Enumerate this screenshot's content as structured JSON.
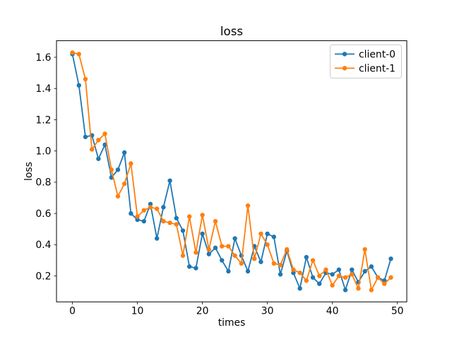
{
  "figure": {
    "title": "loss",
    "background": "#ffffff"
  },
  "chart_data": {
    "type": "line",
    "title": "loss",
    "xlabel": "times",
    "ylabel": "loss",
    "grid": false,
    "marker": "circle",
    "legend": {
      "position": "upper right",
      "entries": [
        "client-0",
        "client-1"
      ]
    },
    "xlim": [
      -2.45,
      51.45
    ],
    "ylim": [
      0.034,
      1.706
    ],
    "xticks": [
      0,
      10,
      20,
      30,
      40,
      50
    ],
    "yticks": [
      "0.2",
      "0.4",
      "0.6",
      "0.8",
      "1.0",
      "1.2",
      "1.4",
      "1.6"
    ],
    "x": [
      0,
      1,
      2,
      3,
      4,
      5,
      6,
      7,
      8,
      9,
      10,
      11,
      12,
      13,
      14,
      15,
      16,
      17,
      18,
      19,
      20,
      21,
      22,
      23,
      24,
      25,
      26,
      27,
      28,
      29,
      30,
      31,
      32,
      33,
      34,
      35,
      36,
      37,
      38,
      39,
      40,
      41,
      42,
      43,
      44,
      45,
      46,
      47,
      48,
      49
    ],
    "series": [
      {
        "name": "client-0",
        "color": "#1f77b4",
        "values": [
          1.62,
          1.42,
          1.09,
          1.1,
          0.95,
          1.04,
          0.83,
          0.88,
          0.99,
          0.6,
          0.56,
          0.55,
          0.66,
          0.44,
          0.64,
          0.81,
          0.57,
          0.49,
          0.26,
          0.25,
          0.47,
          0.34,
          0.38,
          0.3,
          0.23,
          0.44,
          0.33,
          0.23,
          0.39,
          0.29,
          0.47,
          0.45,
          0.21,
          0.36,
          0.22,
          0.12,
          0.32,
          0.19,
          0.15,
          0.22,
          0.21,
          0.24,
          0.11,
          0.24,
          0.16,
          0.23,
          0.26,
          0.19,
          0.17,
          0.31
        ]
      },
      {
        "name": "client-1",
        "color": "#ff7f0e",
        "values": [
          1.63,
          1.62,
          1.46,
          1.01,
          1.07,
          1.11,
          0.88,
          0.71,
          0.79,
          0.92,
          0.58,
          0.62,
          0.64,
          0.63,
          0.55,
          0.54,
          0.53,
          0.33,
          0.58,
          0.35,
          0.59,
          0.37,
          0.55,
          0.39,
          0.39,
          0.33,
          0.28,
          0.65,
          0.31,
          0.47,
          0.4,
          0.28,
          0.27,
          0.37,
          0.24,
          0.22,
          0.17,
          0.3,
          0.2,
          0.24,
          0.14,
          0.2,
          0.19,
          0.21,
          0.12,
          0.37,
          0.11,
          0.19,
          0.15,
          0.19
        ]
      }
    ],
    "style": {
      "spine_color": "#000000",
      "tick_font_px": 13.9,
      "title_font_px": 16.7,
      "label_font_px": 13.9,
      "legend_edge": "#cccccc",
      "line_width": 1.8,
      "marker_radius": 3.2
    }
  }
}
